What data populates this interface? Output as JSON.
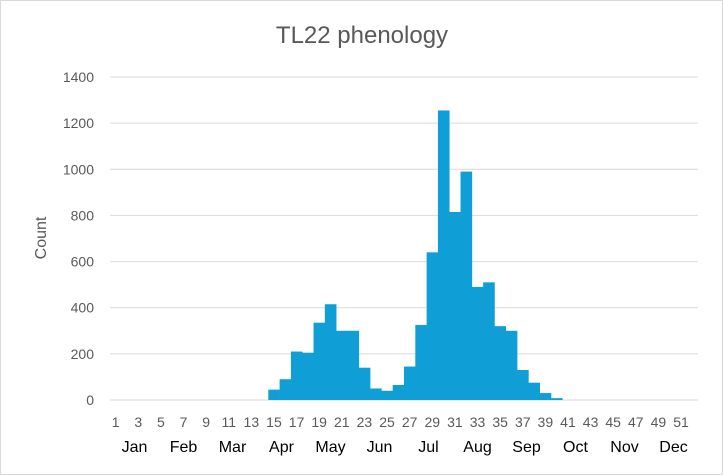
{
  "chart_data": {
    "type": "bar",
    "title": "TL22 phenology",
    "ylabel": "Count",
    "xlabel": "",
    "ylim": [
      0,
      1400
    ],
    "yticks": [
      0,
      200,
      400,
      600,
      800,
      1000,
      1200,
      1400
    ],
    "grid": true,
    "legend": "none",
    "bar_color": "#0f9ed5",
    "categories": [
      1,
      2,
      3,
      4,
      5,
      6,
      7,
      8,
      9,
      10,
      11,
      12,
      13,
      14,
      15,
      16,
      17,
      18,
      19,
      20,
      21,
      22,
      23,
      24,
      25,
      26,
      27,
      28,
      29,
      30,
      31,
      32,
      33,
      34,
      35,
      36,
      37,
      38,
      39,
      40,
      41,
      42,
      43,
      44,
      45,
      46,
      47,
      48,
      49,
      50,
      51,
      52
    ],
    "xtick_labels": [
      "1",
      "3",
      "5",
      "7",
      "9",
      "11",
      "13",
      "15",
      "17",
      "19",
      "21",
      "23",
      "25",
      "27",
      "29",
      "31",
      "33",
      "35",
      "37",
      "39",
      "41",
      "43",
      "45",
      "47",
      "49",
      "51"
    ],
    "months": [
      "Jan",
      "Feb",
      "Mar",
      "Apr",
      "May",
      "Jun",
      "Jul",
      "Aug",
      "Sep",
      "Oct",
      "Nov",
      "Dec"
    ],
    "values": [
      0,
      0,
      0,
      0,
      0,
      0,
      0,
      0,
      0,
      0,
      0,
      0,
      0,
      0,
      45,
      90,
      210,
      205,
      335,
      415,
      300,
      300,
      140,
      50,
      40,
      65,
      145,
      325,
      640,
      1255,
      815,
      990,
      490,
      510,
      320,
      300,
      130,
      75,
      30,
      8,
      0,
      0,
      0,
      0,
      0,
      0,
      0,
      0,
      0,
      0,
      0,
      0
    ]
  }
}
